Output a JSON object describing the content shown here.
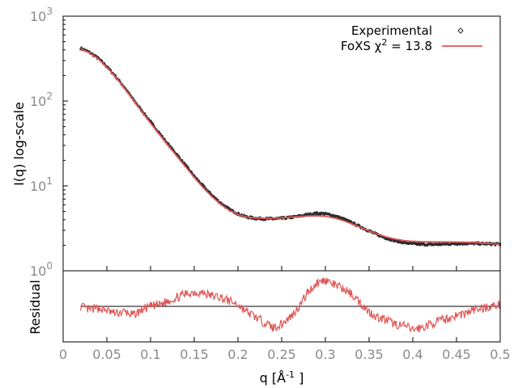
{
  "chart_data": [
    {
      "type": "scatter",
      "panel": "main",
      "ylabel": "I(q) log-scale",
      "yscale": "log",
      "ylim": [
        1,
        1000
      ],
      "xlim": [
        0,
        0.5
      ],
      "y_ticks": [
        {
          "value": 1,
          "base": "10",
          "exp": "0"
        },
        {
          "value": 10,
          "base": "10",
          "exp": "1"
        },
        {
          "value": 100,
          "base": "10",
          "exp": "2"
        },
        {
          "value": 1000,
          "base": "10",
          "exp": "3"
        }
      ],
      "legend_position": "top-right",
      "series": [
        {
          "name": "Experimental",
          "color": "#2b2b2b",
          "marker": "points",
          "x": [
            0.02,
            0.03,
            0.04,
            0.05,
            0.06,
            0.07,
            0.08,
            0.09,
            0.1,
            0.11,
            0.12,
            0.13,
            0.14,
            0.15,
            0.16,
            0.17,
            0.18,
            0.19,
            0.2,
            0.21,
            0.22,
            0.23,
            0.24,
            0.25,
            0.26,
            0.27,
            0.28,
            0.29,
            0.3,
            0.31,
            0.32,
            0.33,
            0.34,
            0.35,
            0.36,
            0.37,
            0.38,
            0.39,
            0.4,
            0.41,
            0.42,
            0.43,
            0.44,
            0.45,
            0.46,
            0.47,
            0.48,
            0.49,
            0.5
          ],
          "y": [
            420,
            375,
            320,
            255,
            195,
            145,
            105,
            77,
            57,
            42,
            31,
            23.5,
            17.5,
            13,
            10,
            7.8,
            6.3,
            5.3,
            4.7,
            4.3,
            4.15,
            4.1,
            4.1,
            4.15,
            4.25,
            4.4,
            4.6,
            4.75,
            4.7,
            4.45,
            4.1,
            3.7,
            3.3,
            2.95,
            2.65,
            2.42,
            2.26,
            2.15,
            2.08,
            2.05,
            2.04,
            2.05,
            2.07,
            2.09,
            2.1,
            2.1,
            2.09,
            2.07,
            2.05
          ]
        },
        {
          "name": "FoXS χ 2 = 13.8",
          "name_parts": {
            "prefix": "FoXS χ",
            "sup": "2",
            "suffix": " = 13.8"
          },
          "color": "#e05555",
          "marker": "line",
          "x": [
            0.02,
            0.03,
            0.04,
            0.05,
            0.06,
            0.07,
            0.08,
            0.09,
            0.1,
            0.11,
            0.12,
            0.13,
            0.14,
            0.15,
            0.16,
            0.17,
            0.18,
            0.19,
            0.2,
            0.21,
            0.22,
            0.23,
            0.24,
            0.25,
            0.26,
            0.27,
            0.28,
            0.29,
            0.3,
            0.31,
            0.32,
            0.33,
            0.34,
            0.35,
            0.36,
            0.37,
            0.38,
            0.39,
            0.4,
            0.41,
            0.42,
            0.43,
            0.44,
            0.45,
            0.46,
            0.47,
            0.48,
            0.49,
            0.5
          ],
          "y": [
            415,
            370,
            315,
            250,
            192,
            142,
            103,
            75,
            55,
            40.5,
            30,
            22.5,
            16.8,
            12.6,
            9.6,
            7.5,
            6.1,
            5.15,
            4.6,
            4.3,
            4.18,
            4.15,
            4.15,
            4.2,
            4.28,
            4.36,
            4.42,
            4.44,
            4.38,
            4.2,
            3.92,
            3.58,
            3.25,
            2.95,
            2.7,
            2.5,
            2.36,
            2.27,
            2.22,
            2.2,
            2.19,
            2.19,
            2.19,
            2.18,
            2.17,
            2.15,
            2.12,
            2.09,
            2.05
          ]
        }
      ]
    },
    {
      "type": "line",
      "panel": "residual",
      "xlabel": "q [Å⁻¹]",
      "xlabel_parts": {
        "prefix": "q [Å",
        "sup": "-1",
        "suffix": " ]"
      },
      "ylabel": "Residual",
      "xlim": [
        0,
        0.5
      ],
      "ylim": [
        -2,
        2
      ],
      "x_ticks": [
        "0",
        "0.05",
        "0.1",
        "0.15",
        "0.2",
        "0.25",
        "0.3",
        "0.35",
        "0.4",
        "0.45",
        "0.5"
      ],
      "zero_line": 0,
      "series": [
        {
          "color": "#e05555",
          "x": [
            0.02,
            0.03,
            0.04,
            0.05,
            0.06,
            0.07,
            0.08,
            0.09,
            0.1,
            0.11,
            0.12,
            0.13,
            0.14,
            0.15,
            0.16,
            0.17,
            0.18,
            0.19,
            0.2,
            0.21,
            0.22,
            0.23,
            0.24,
            0.25,
            0.26,
            0.27,
            0.28,
            0.29,
            0.3,
            0.31,
            0.32,
            0.33,
            0.34,
            0.35,
            0.36,
            0.37,
            0.38,
            0.39,
            0.4,
            0.41,
            0.42,
            0.43,
            0.44,
            0.45,
            0.46,
            0.47,
            0.48,
            0.49,
            0.5
          ],
          "y": [
            0,
            -0.2,
            -0.1,
            -0.25,
            -0.4,
            -0.3,
            -0.5,
            -0.2,
            0,
            0.1,
            0.3,
            0.5,
            0.7,
            0.8,
            0.75,
            0.6,
            0.5,
            0.3,
            0.1,
            -0.3,
            -0.6,
            -0.9,
            -1.2,
            -1.0,
            -0.6,
            0.0,
            0.8,
            1.3,
            1.5,
            1.2,
            1.0,
            0.7,
            0.2,
            -0.3,
            -0.6,
            -0.8,
            -1.0,
            -1.1,
            -1.3,
            -1.2,
            -1.0,
            -0.8,
            -0.7,
            -0.5,
            -0.4,
            -0.2,
            -0.1,
            0.0,
            0.1
          ]
        }
      ]
    }
  ]
}
